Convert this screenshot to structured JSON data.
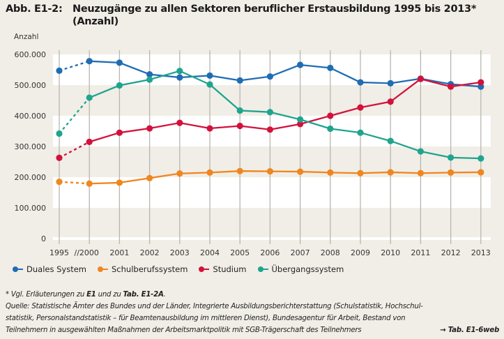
{
  "figure": {
    "label": "Abb. E1-2:",
    "title_line1": "Neuzugänge zu allen Sektoren beruflicher Erstausbildung 1995 bis 2013*",
    "title_line2": "(Anzahl)"
  },
  "chart_data": {
    "type": "line",
    "title": "Neuzugänge zu allen Sektoren beruflicher Erstausbildung 1995 bis 2013* (Anzahl)",
    "xlabel": "",
    "ylabel": "Anzahl",
    "categories": [
      "1995",
      "2000",
      "2001",
      "2002",
      "2003",
      "2004",
      "2005",
      "2006",
      "2007",
      "2008",
      "2009",
      "2010",
      "2011",
      "2012",
      "2013"
    ],
    "x_tick_labels": [
      "1995",
      "//2000",
      "2001",
      "2002",
      "2003",
      "2004",
      "2005",
      "2006",
      "2007",
      "2008",
      "2009",
      "2010",
      "2011",
      "2012",
      "2013"
    ],
    "axis_break": "between 1995 and 2000 (dashed segment)",
    "ylim": [
      0,
      600000
    ],
    "y_ticks": [
      0,
      100000,
      200000,
      300000,
      400000,
      500000,
      600000
    ],
    "y_tick_labels": [
      "0",
      "100.000",
      "200.000",
      "300.000",
      "400.000",
      "500.000",
      "600.000"
    ],
    "grid": "alternating horizontal bands, vertical lines at each year",
    "legend_position": "bottom",
    "series": [
      {
        "name": "Duales System",
        "color": "#1f6db3",
        "values": [
          547000,
          578000,
          573000,
          535000,
          525000,
          531000,
          515000,
          528000,
          566000,
          556000,
          509000,
          506000,
          521000,
          503000,
          495000
        ]
      },
      {
        "name": "Schulberufssystem",
        "color": "#f0861e",
        "values": [
          185000,
          179000,
          182000,
          197000,
          212000,
          215000,
          220000,
          219000,
          218000,
          215000,
          213000,
          216000,
          213000,
          215000,
          216000
        ]
      },
      {
        "name": "Studium",
        "color": "#d3123b",
        "values": [
          263000,
          315000,
          345000,
          359000,
          377000,
          359000,
          367000,
          355000,
          373000,
          400000,
          427000,
          446000,
          520000,
          495000,
          509000
        ]
      },
      {
        "name": "Übergangssystem",
        "color": "#1fa48e",
        "values": [
          342000,
          459000,
          499000,
          518000,
          546000,
          502000,
          417000,
          412000,
          388000,
          358000,
          345000,
          318000,
          284000,
          264000,
          261000
        ]
      }
    ]
  },
  "legend": [
    {
      "label": "Duales System",
      "color": "#1f6db3"
    },
    {
      "label": "Schulberufssystem",
      "color": "#f0861e"
    },
    {
      "label": "Studium",
      "color": "#d3123b"
    },
    {
      "label": "Übergangssystem",
      "color": "#1fa48e"
    }
  ],
  "notes": {
    "footnote_prefix": "*  Vgl. Erläuterungen zu ",
    "footnote_b1": "E1",
    "footnote_mid": " und zu ",
    "footnote_b2": "Tab. E1-2A",
    "footnote_end": ".",
    "source_line1": "Quelle: Statistische Ämter des Bundes und der Länder, Integrierte Ausbildungsberichterstattung (Schulstatistik, Hochschul-",
    "source_line2": "statistik, Personalstandstatistik – für Beamtenausbildung im mittleren Dienst), Bundesagentur für Arbeit, Bestand von",
    "source_line3": "Teilnehmern in ausgewählten Maßnahmen der Arbeitsmarktpolitik mit SGB-Trägerschaft des Teilnehmers",
    "reference": "→ Tab. E1-6web"
  }
}
